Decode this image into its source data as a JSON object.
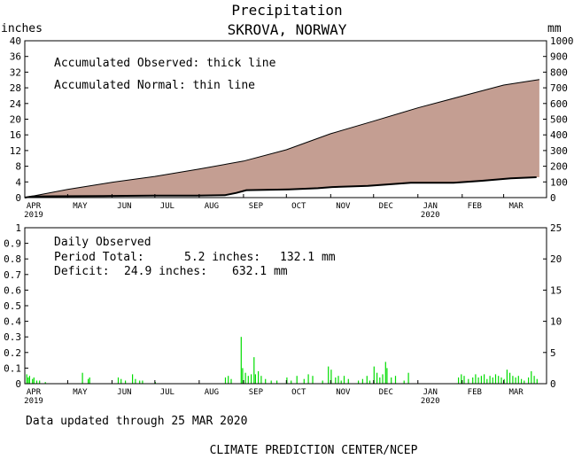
{
  "header": {
    "title": "Precipitation",
    "subtitle": "SKROVA, NORWAY",
    "left_unit": "inches",
    "right_unit": "mm"
  },
  "colors": {
    "fill": "#c49e92",
    "daily_bars": "#00dd00",
    "line": "#000000"
  },
  "footer": {
    "updated": "Data updated through 25 MAR 2020",
    "credit": "CLIMATE PREDICTION CENTER/NCEP"
  },
  "chart_data": [
    {
      "type": "area",
      "legend_lines": [
        "Accumulated Observed: thick line",
        "Accumulated Normal: thin line"
      ],
      "y_left": {
        "min": 0,
        "max": 40,
        "ticks": [
          "0",
          "4",
          "8",
          "12",
          "16",
          "20",
          "24",
          "28",
          "32",
          "36",
          "40"
        ]
      },
      "y_right": {
        "ticks": [
          "0",
          "100",
          "200",
          "300",
          "400",
          "500",
          "600",
          "700",
          "800",
          "900",
          "1000"
        ]
      },
      "x_months": [
        "APR",
        "MAY",
        "JUN",
        "JUL",
        "AUG",
        "SEP",
        "OCT",
        "NOV",
        "DEC",
        "JAN",
        "FEB",
        "MAR"
      ],
      "x_years": [
        {
          "label": "2019",
          "month_index": 0
        },
        {
          "label": "2020",
          "month_index": 9
        }
      ],
      "x_range_days": [
        0,
        365
      ],
      "normal": {
        "name": "Accumulated Normal",
        "day": [
          0,
          30,
          61,
          91,
          122,
          153,
          183,
          214,
          244,
          275,
          306,
          335,
          360
        ],
        "inches": [
          0,
          2.1,
          3.9,
          5.4,
          7.3,
          9.3,
          12.2,
          16.3,
          19.5,
          22.9,
          25.9,
          28.7,
          30.1
        ]
      },
      "observed": {
        "name": "Accumulated Observed",
        "day": [
          0,
          5,
          20,
          55,
          90,
          120,
          140,
          148,
          155,
          185,
          205,
          215,
          240,
          270,
          300,
          320,
          340,
          358
        ],
        "inches": [
          0,
          0.3,
          0.35,
          0.4,
          0.5,
          0.5,
          0.6,
          1.2,
          1.9,
          2.1,
          2.4,
          2.7,
          3.0,
          3.8,
          3.8,
          4.3,
          4.9,
          5.2
        ]
      }
    },
    {
      "type": "bar",
      "title": "Daily Observed",
      "stats": [
        {
          "label": "Period Total:",
          "inches": "5.2 inches:",
          "mm": "132.1 mm"
        },
        {
          "label": "Deficit:",
          "inches": "24.9 inches:",
          "mm": "632.1 mm"
        }
      ],
      "y_left": {
        "min": 0,
        "max": 1,
        "ticks": [
          "0",
          "0.1",
          "0.2",
          "0.3",
          "0.4",
          "0.5",
          "0.6",
          "0.7",
          "0.8",
          "0.9",
          "1"
        ]
      },
      "y_right": {
        "ticks": [
          "0",
          "5",
          "10",
          "15",
          "20",
          "25"
        ]
      },
      "x_months": [
        "APR",
        "MAY",
        "JUN",
        "JUL",
        "AUG",
        "SEP",
        "OCT",
        "NOV",
        "DEC",
        "JAN",
        "FEB",
        "MAR"
      ],
      "x_years": [
        {
          "label": "2019",
          "month_index": 0
        },
        {
          "label": "2020",
          "month_index": 9
        }
      ],
      "daily": [
        [
          1,
          0.06
        ],
        [
          2,
          0.04
        ],
        [
          3,
          0.05
        ],
        [
          5,
          0.03
        ],
        [
          6,
          0.04
        ],
        [
          8,
          0.02
        ],
        [
          10,
          0.02
        ],
        [
          14,
          0.01
        ],
        [
          40,
          0.07
        ],
        [
          44,
          0.03
        ],
        [
          45,
          0.04
        ],
        [
          65,
          0.04
        ],
        [
          67,
          0.03
        ],
        [
          70,
          0.02
        ],
        [
          75,
          0.06
        ],
        [
          77,
          0.03
        ],
        [
          80,
          0.02
        ],
        [
          82,
          0.02
        ],
        [
          91,
          0.01
        ],
        [
          140,
          0.04
        ],
        [
          142,
          0.05
        ],
        [
          144,
          0.03
        ],
        [
          151,
          0.3
        ],
        [
          152,
          0.1
        ],
        [
          154,
          0.07
        ],
        [
          156,
          0.05
        ],
        [
          158,
          0.06
        ],
        [
          160,
          0.17
        ],
        [
          161,
          0.06
        ],
        [
          163,
          0.08
        ],
        [
          165,
          0.05
        ],
        [
          168,
          0.03
        ],
        [
          172,
          0.02
        ],
        [
          176,
          0.02
        ],
        [
          183,
          0.04
        ],
        [
          186,
          0.02
        ],
        [
          190,
          0.05
        ],
        [
          195,
          0.03
        ],
        [
          198,
          0.06
        ],
        [
          201,
          0.05
        ],
        [
          208,
          0.02
        ],
        [
          212,
          0.11
        ],
        [
          214,
          0.09
        ],
        [
          217,
          0.04
        ],
        [
          219,
          0.05
        ],
        [
          221,
          0.02
        ],
        [
          223,
          0.05
        ],
        [
          226,
          0.03
        ],
        [
          233,
          0.02
        ],
        [
          236,
          0.03
        ],
        [
          239,
          0.05
        ],
        [
          241,
          0.02
        ],
        [
          244,
          0.11
        ],
        [
          246,
          0.07
        ],
        [
          248,
          0.04
        ],
        [
          250,
          0.06
        ],
        [
          252,
          0.14
        ],
        [
          253,
          0.1
        ],
        [
          256,
          0.04
        ],
        [
          259,
          0.05
        ],
        [
          265,
          0.02
        ],
        [
          268,
          0.07
        ],
        [
          303,
          0.04
        ],
        [
          305,
          0.06
        ],
        [
          307,
          0.05
        ],
        [
          310,
          0.03
        ],
        [
          313,
          0.04
        ],
        [
          315,
          0.06
        ],
        [
          317,
          0.04
        ],
        [
          319,
          0.05
        ],
        [
          321,
          0.06
        ],
        [
          323,
          0.03
        ],
        [
          325,
          0.05
        ],
        [
          327,
          0.04
        ],
        [
          329,
          0.06
        ],
        [
          331,
          0.05
        ],
        [
          333,
          0.04
        ],
        [
          335,
          0.03
        ],
        [
          337,
          0.09
        ],
        [
          339,
          0.07
        ],
        [
          341,
          0.05
        ],
        [
          343,
          0.04
        ],
        [
          345,
          0.05
        ],
        [
          347,
          0.03
        ],
        [
          349,
          0.02
        ],
        [
          352,
          0.04
        ],
        [
          354,
          0.08
        ],
        [
          356,
          0.05
        ],
        [
          358,
          0.03
        ]
      ]
    }
  ]
}
